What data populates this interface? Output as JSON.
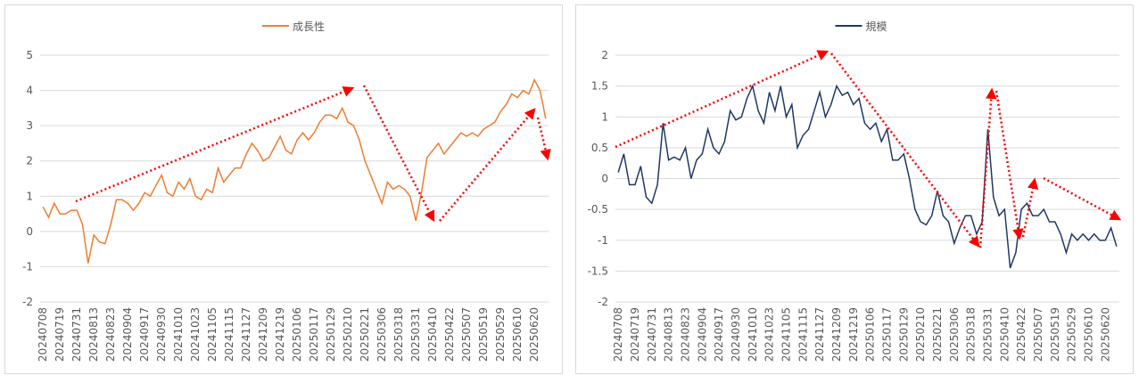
{
  "chart_data": [
    {
      "type": "line",
      "legend": "top",
      "categories": [
        "20240708",
        null,
        null,
        "20240719",
        null,
        null,
        "20240731",
        null,
        null,
        "20240813",
        null,
        null,
        "20240823",
        null,
        null,
        "20240904",
        null,
        null,
        "20240917",
        null,
        null,
        "20240930",
        null,
        null,
        "20241010",
        null,
        null,
        "20241023",
        null,
        null,
        "20241105",
        null,
        null,
        "20241115",
        null,
        null,
        "20241127",
        null,
        null,
        "20241209",
        null,
        null,
        "20241219",
        null,
        null,
        "20250106",
        null,
        null,
        "20250117",
        null,
        null,
        "20250129",
        null,
        null,
        "20250210",
        null,
        null,
        "20250221",
        null,
        null,
        "20250306",
        null,
        null,
        "20250318",
        null,
        null,
        "20250331",
        null,
        null,
        "20250410",
        null,
        null,
        "20250422",
        null,
        null,
        "20250507",
        null,
        null,
        "20250519",
        null,
        null,
        "20250529",
        null,
        null,
        "20250610",
        null,
        null,
        "20250620",
        null,
        null
      ],
      "series": [
        {
          "name": "成長性",
          "color": "#ED7D31",
          "values": [
            0.7,
            0.4,
            0.8,
            0.5,
            0.5,
            0.6,
            0.6,
            0.2,
            -0.9,
            -0.1,
            -0.3,
            -0.35,
            0.2,
            0.9,
            0.9,
            0.8,
            0.6,
            0.8,
            1.1,
            1.0,
            1.3,
            1.6,
            1.1,
            1.0,
            1.4,
            1.2,
            1.5,
            1.0,
            0.9,
            1.2,
            1.1,
            1.8,
            1.4,
            1.6,
            1.8,
            1.8,
            2.2,
            2.5,
            2.3,
            2.0,
            2.1,
            2.4,
            2.7,
            2.3,
            2.2,
            2.6,
            2.8,
            2.6,
            2.8,
            3.1,
            3.3,
            3.3,
            3.2,
            3.5,
            3.1,
            3.0,
            2.6,
            2.0,
            1.6,
            1.2,
            0.8,
            1.4,
            1.2,
            1.3,
            1.2,
            1.0,
            0.3,
            1.1,
            2.1,
            2.3,
            2.5,
            2.2,
            2.4,
            2.6,
            2.8,
            2.7,
            2.8,
            2.7,
            2.9,
            3.0,
            3.1,
            3.4,
            3.6,
            3.9,
            3.8,
            4.0,
            3.9,
            4.3,
            4.0,
            3.2
          ]
        }
      ],
      "ylim": [
        -2,
        5
      ],
      "yticks": [
        -2,
        -1,
        0,
        1,
        2,
        3,
        4,
        5
      ],
      "grid": true
    },
    {
      "type": "line",
      "legend": "top",
      "categories": [
        "20240708",
        null,
        null,
        "20240719",
        null,
        null,
        "20240731",
        null,
        null,
        "20240813",
        null,
        null,
        "20240823",
        null,
        null,
        "20240904",
        null,
        null,
        "20240917",
        null,
        null,
        "20240930",
        null,
        null,
        "20241010",
        null,
        null,
        "20241023",
        null,
        null,
        "20241105",
        null,
        null,
        "20241115",
        null,
        null,
        "20241127",
        null,
        null,
        "20241209",
        null,
        null,
        "20241219",
        null,
        null,
        "20250106",
        null,
        null,
        "20250117",
        null,
        null,
        "20250129",
        null,
        null,
        "20250210",
        null,
        null,
        "20250221",
        null,
        null,
        "20250306",
        null,
        null,
        "20250318",
        null,
        null,
        "20250331",
        null,
        null,
        "20250410",
        null,
        null,
        "20250422",
        null,
        null,
        "20250507",
        null,
        null,
        "20250519",
        null,
        null,
        "20250529",
        null,
        null,
        "20250610",
        null,
        null,
        "20250620",
        null,
        null
      ],
      "series": [
        {
          "name": "規模",
          "color": "#203864",
          "values": [
            0.1,
            0.4,
            -0.1,
            -0.1,
            0.2,
            -0.3,
            -0.4,
            -0.1,
            0.9,
            0.3,
            0.35,
            0.3,
            0.5,
            0.0,
            0.3,
            0.4,
            0.8,
            0.5,
            0.4,
            0.6,
            1.1,
            0.95,
            1.0,
            1.3,
            1.5,
            1.1,
            0.9,
            1.4,
            1.1,
            1.5,
            1.0,
            1.2,
            0.5,
            0.7,
            0.8,
            1.1,
            1.4,
            1.0,
            1.2,
            1.5,
            1.35,
            1.4,
            1.2,
            1.3,
            0.9,
            0.8,
            0.9,
            0.6,
            0.8,
            0.3,
            0.3,
            0.4,
            0.0,
            -0.5,
            -0.7,
            -0.75,
            -0.6,
            -0.2,
            -0.6,
            -0.7,
            -1.05,
            -0.8,
            -0.6,
            -0.6,
            -0.9,
            -0.7,
            0.8,
            -0.3,
            -0.6,
            -0.5,
            -1.45,
            -1.2,
            -0.5,
            -0.4,
            -0.6,
            -0.6,
            -0.5,
            -0.7,
            -0.7,
            -0.9,
            -1.2,
            -0.9,
            -1.0,
            -0.9,
            -1.0,
            -0.9,
            -1.0,
            -1.0,
            -0.8,
            -1.1
          ]
        }
      ],
      "ylim": [
        -2,
        2
      ],
      "yticks": [
        -2,
        -1.5,
        -1,
        -0.5,
        0,
        0.5,
        1,
        1.5,
        2
      ],
      "grid": true
    }
  ]
}
